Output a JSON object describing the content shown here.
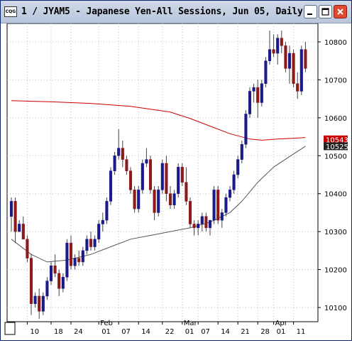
{
  "window": {
    "app_icon_text": "CQG",
    "title": "1 / JYAM5 - Japanese Yen-All Sessions, Jun 05, Daily",
    "buttons": {
      "minimize": "minimize-icon",
      "maximize": "maximize-icon",
      "close": "close-icon"
    }
  },
  "colors": {
    "up": "#1a1a8c",
    "down": "#8c1a1a",
    "ma_long": "#cc0000",
    "ma_short": "#555555",
    "grid": "#bbbbbb"
  },
  "price_tags": [
    {
      "label": "10543",
      "background": "#cc0000",
      "color": "#ffffff"
    },
    {
      "label": "10525",
      "background": "#222222",
      "color": "#ffffff"
    }
  ],
  "chart_data": {
    "type": "candlestick",
    "symbol": "JYAM5",
    "ylim": [
      10060,
      10840
    ],
    "y_ticks": [
      10100,
      10200,
      10300,
      10400,
      10500,
      10600,
      10700,
      10800
    ],
    "y_tick_labels": [
      "10100",
      "10200",
      "10300",
      "10400",
      "10500",
      "10600",
      "10700",
      "10800"
    ],
    "x_ticks": [
      {
        "label": "10",
        "bar": 4
      },
      {
        "label": "18",
        "bar": 10
      },
      {
        "label": "24",
        "bar": 15
      },
      {
        "label": "01",
        "bar": 22
      },
      {
        "label": "07",
        "bar": 27
      },
      {
        "label": "14",
        "bar": 32
      },
      {
        "label": "22",
        "bar": 38
      },
      {
        "label": "01",
        "bar": 43
      },
      {
        "label": "07",
        "bar": 47
      },
      {
        "label": "14",
        "bar": 52
      },
      {
        "label": "21",
        "bar": 57
      },
      {
        "label": "28",
        "bar": 62
      },
      {
        "label": "01",
        "bar": 66
      },
      {
        "label": "11",
        "bar": 71
      }
    ],
    "month_labels": [
      {
        "label": "Feb",
        "bar": 22
      },
      {
        "label": "Mar",
        "bar": 43
      },
      {
        "label": "Apr",
        "bar": 66
      }
    ],
    "bars": [
      [
        10340,
        10390,
        10300,
        10380
      ],
      [
        10380,
        10390,
        10270,
        10300
      ],
      [
        10300,
        10330,
        10300,
        10320
      ],
      [
        10320,
        10340,
        10280,
        10280
      ],
      [
        10280,
        10290,
        10220,
        10230
      ],
      [
        10230,
        10240,
        10080,
        10110
      ],
      [
        10110,
        10140,
        10100,
        10130
      ],
      [
        10130,
        10150,
        10070,
        10090
      ],
      [
        10090,
        10140,
        10080,
        10130
      ],
      [
        10130,
        10180,
        10120,
        10170
      ],
      [
        10170,
        10220,
        10160,
        10210
      ],
      [
        10210,
        10240,
        10180,
        10190
      ],
      [
        10190,
        10200,
        10130,
        10150
      ],
      [
        10150,
        10190,
        10140,
        10180
      ],
      [
        10180,
        10280,
        10170,
        10270
      ],
      [
        10270,
        10290,
        10200,
        10210
      ],
      [
        10210,
        10240,
        10200,
        10230
      ],
      [
        10230,
        10250,
        10210,
        10220
      ],
      [
        10220,
        10260,
        10210,
        10250
      ],
      [
        10250,
        10290,
        10240,
        10280
      ],
      [
        10280,
        10300,
        10250,
        10260
      ],
      [
        10260,
        10290,
        10250,
        10280
      ],
      [
        10280,
        10330,
        10270,
        10320
      ],
      [
        10320,
        10350,
        10300,
        10330
      ],
      [
        10330,
        10390,
        10320,
        10380
      ],
      [
        10380,
        10470,
        10370,
        10460
      ],
      [
        10460,
        10510,
        10450,
        10500
      ],
      [
        10500,
        10570,
        10490,
        10520
      ],
      [
        10520,
        10540,
        10470,
        10490
      ],
      [
        10490,
        10500,
        10450,
        10460
      ],
      [
        10460,
        10470,
        10400,
        10410
      ],
      [
        10410,
        10420,
        10350,
        10360
      ],
      [
        10360,
        10420,
        10350,
        10410
      ],
      [
        10410,
        10490,
        10400,
        10480
      ],
      [
        10480,
        10520,
        10470,
        10490
      ],
      [
        10490,
        10500,
        10400,
        10410
      ],
      [
        10410,
        10420,
        10330,
        10350
      ],
      [
        10350,
        10420,
        10340,
        10410
      ],
      [
        10410,
        10490,
        10400,
        10480
      ],
      [
        10480,
        10500,
        10380,
        10400
      ],
      [
        10400,
        10420,
        10360,
        10370
      ],
      [
        10370,
        10410,
        10360,
        10400
      ],
      [
        10400,
        10480,
        10390,
        10470
      ],
      [
        10470,
        10480,
        10420,
        10430
      ],
      [
        10430,
        10470,
        10370,
        10380
      ],
      [
        10380,
        10390,
        10310,
        10320
      ],
      [
        10320,
        10330,
        10290,
        10310
      ],
      [
        10310,
        10330,
        10290,
        10320
      ],
      [
        10320,
        10350,
        10300,
        10340
      ],
      [
        10340,
        10350,
        10300,
        10310
      ],
      [
        10310,
        10330,
        10290,
        10330
      ],
      [
        10330,
        10420,
        10320,
        10410
      ],
      [
        10410,
        10420,
        10320,
        10330
      ],
      [
        10330,
        10360,
        10310,
        10350
      ],
      [
        10350,
        10400,
        10340,
        10390
      ],
      [
        10390,
        10420,
        10380,
        10410
      ],
      [
        10410,
        10460,
        10400,
        10450
      ],
      [
        10450,
        10500,
        10440,
        10490
      ],
      [
        10490,
        10540,
        10480,
        10530
      ],
      [
        10530,
        10620,
        10520,
        10610
      ],
      [
        10610,
        10680,
        10600,
        10670
      ],
      [
        10670,
        10690,
        10640,
        10680
      ],
      [
        10680,
        10700,
        10600,
        10640
      ],
      [
        10640,
        10700,
        10630,
        10690
      ],
      [
        10690,
        10760,
        10680,
        10750
      ],
      [
        10750,
        10830,
        10740,
        10780
      ],
      [
        10780,
        10820,
        10760,
        10770
      ],
      [
        10770,
        10820,
        10740,
        10810
      ],
      [
        10810,
        10830,
        10770,
        10790
      ],
      [
        10790,
        10800,
        10720,
        10730
      ],
      [
        10730,
        10790,
        10690,
        10770
      ],
      [
        10770,
        10780,
        10680,
        10690
      ],
      [
        10690,
        10720,
        10650,
        10670
      ],
      [
        10670,
        10790,
        10660,
        10780
      ],
      [
        10780,
        10800,
        10720,
        10730
      ]
    ],
    "moving_average_long": {
      "color": "#cc0000",
      "points": [
        [
          0,
          10645
        ],
        [
          10,
          10642
        ],
        [
          20,
          10638
        ],
        [
          30,
          10630
        ],
        [
          40,
          10615
        ],
        [
          45,
          10598
        ],
        [
          50,
          10578
        ],
        [
          55,
          10558
        ],
        [
          60,
          10544
        ],
        [
          63,
          10541
        ],
        [
          67,
          10544
        ],
        [
          71,
          10546
        ],
        [
          74,
          10548
        ]
      ]
    },
    "moving_average_short": {
      "color": "#555555",
      "points": [
        [
          0,
          10280
        ],
        [
          5,
          10240
        ],
        [
          9,
          10220
        ],
        [
          14,
          10225
        ],
        [
          20,
          10240
        ],
        [
          25,
          10260
        ],
        [
          30,
          10280
        ],
        [
          35,
          10290
        ],
        [
          40,
          10300
        ],
        [
          45,
          10310
        ],
        [
          50,
          10325
        ],
        [
          55,
          10350
        ],
        [
          58,
          10380
        ],
        [
          62,
          10430
        ],
        [
          66,
          10470
        ],
        [
          70,
          10498
        ],
        [
          74,
          10525
        ]
      ]
    }
  }
}
